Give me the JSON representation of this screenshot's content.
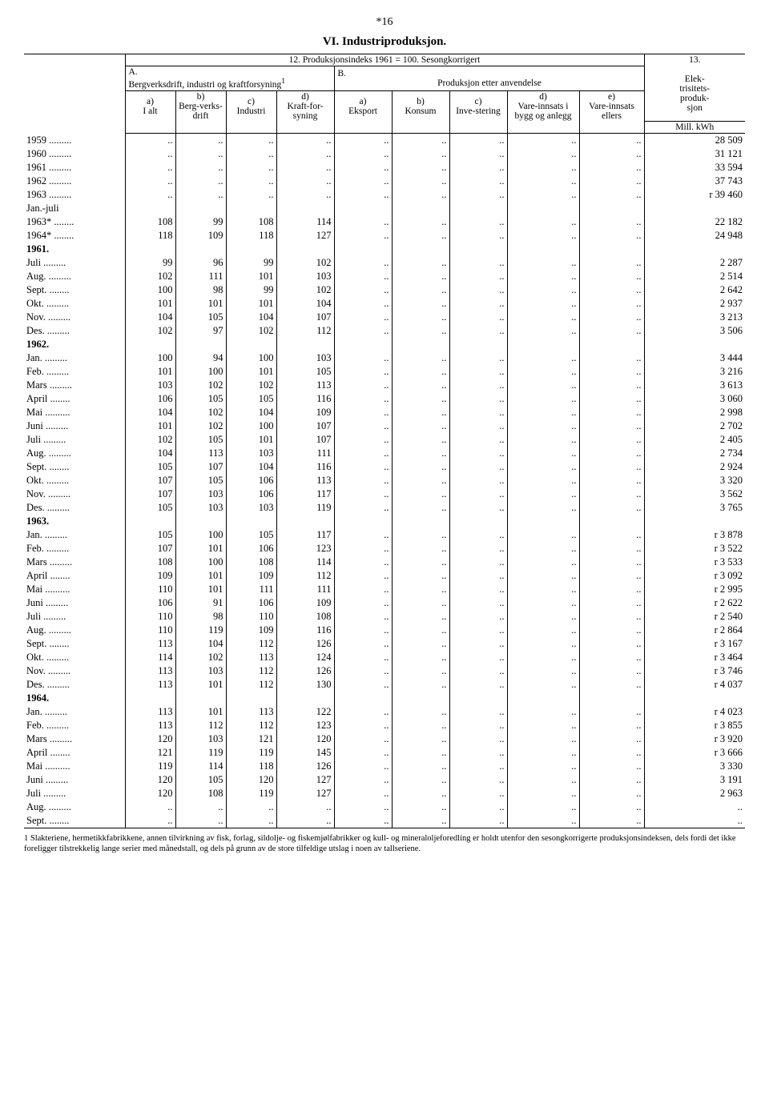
{
  "page_marker": "*16",
  "title": "VI. Industriproduksjon.",
  "header": {
    "span12": "12. Produksjonsindeks 1961 = 100. Sesongkorrigert",
    "col13_top": "13.",
    "A": "A.",
    "A_sub": "Bergverksdrift, industri og kraftforsyning",
    "A_footmark": "1",
    "B": "B.",
    "B_sub": "Produksjon etter anvendelse",
    "col13_line1": "Elek-",
    "col13_line2": "trisitets-",
    "col13_line3": "produk-",
    "col13_line4": "sjon",
    "col13_unit": "Mill. kWh",
    "a": "a)",
    "b": "b)",
    "c": "c)",
    "d": "d)",
    "e": "e)",
    "Ialt": "I alt",
    "Berg": "Berg-verks-drift",
    "Industri": "Industri",
    "Kraft": "Kraft-for-syning",
    "Eksport": "Eksport",
    "Konsum": "Konsum",
    "Inve": "Inve-stering",
    "Vare1": "Vare-innsats i bygg og anlegg",
    "Vare2": "Vare-innsats ellers"
  },
  "rows": [
    {
      "label": "1959 .........",
      "v": [
        "..",
        "..",
        "..",
        "..",
        "..",
        "..",
        "..",
        "..",
        "..",
        "28 509"
      ]
    },
    {
      "label": "1960 .........",
      "v": [
        "..",
        "..",
        "..",
        "..",
        "..",
        "..",
        "..",
        "..",
        "..",
        "31 121"
      ]
    },
    {
      "label": "1961 .........",
      "v": [
        "..",
        "..",
        "..",
        "..",
        "..",
        "..",
        "..",
        "..",
        "..",
        "33 594"
      ]
    },
    {
      "label": "1962 .........",
      "v": [
        "..",
        "..",
        "..",
        "..",
        "..",
        "..",
        "..",
        ".. ",
        "..",
        "37 743"
      ]
    },
    {
      "label": "1963 .........",
      "v": [
        "..",
        "..",
        "..",
        "..",
        "..",
        "..",
        "..",
        "..",
        "..",
        "r  39 460"
      ]
    },
    {
      "label": "Jan.-juli",
      "v": [
        "",
        "",
        "",
        "",
        "",
        "",
        "",
        "",
        "",
        ""
      ]
    },
    {
      "label": "1963* ........",
      "v": [
        "108",
        "99",
        "108",
        "114",
        "..",
        "..",
        "..",
        "..",
        "..",
        "22 182"
      ]
    },
    {
      "label": "1964* ........",
      "v": [
        "118",
        "109",
        "118",
        "127",
        "..",
        "..",
        "..",
        "..",
        "..",
        "24 948"
      ]
    },
    {
      "label": "1961.",
      "year": true,
      "v": [
        "",
        "",
        "",
        "",
        "",
        "",
        "",
        "",
        "",
        ""
      ]
    },
    {
      "label": "Juli .........",
      "v": [
        "99",
        "96",
        "99",
        "102",
        "..",
        "..",
        "..",
        "..",
        "..",
        "2 287"
      ]
    },
    {
      "label": "Aug. .........",
      "v": [
        "102",
        "111",
        "101",
        "103",
        "..",
        "..",
        "..",
        "..",
        "..",
        "2 514"
      ]
    },
    {
      "label": "Sept. ........",
      "v": [
        "100",
        "98",
        "99",
        "102",
        "..",
        "..",
        "..",
        "..",
        "..",
        "2 642"
      ]
    },
    {
      "label": "Okt. .........",
      "v": [
        "101",
        "101",
        "101",
        "104",
        "..",
        "..",
        "..",
        "..",
        "..",
        "2 937"
      ]
    },
    {
      "label": "Nov. .........",
      "v": [
        "104",
        "105",
        "104",
        "107",
        "..",
        "..",
        "..",
        "..",
        "..",
        "3 213"
      ]
    },
    {
      "label": "Des. .........",
      "v": [
        "102",
        "97",
        "102",
        "112",
        "..",
        "..",
        "..",
        "..",
        "..",
        "3 506"
      ]
    },
    {
      "label": "1962.",
      "year": true,
      "v": [
        "",
        "",
        "",
        "",
        "",
        "",
        "",
        "",
        "",
        ""
      ]
    },
    {
      "label": "Jan. .........",
      "v": [
        "100",
        "94",
        "100",
        "103",
        "..",
        "..",
        "..",
        "..",
        "..",
        "3 444"
      ]
    },
    {
      "label": "Feb. .........",
      "v": [
        "101",
        "100",
        "101",
        "105",
        "..",
        "..",
        "..",
        "..",
        "..",
        "3 216"
      ]
    },
    {
      "label": "Mars .........",
      "v": [
        "103",
        "102",
        "102",
        "113",
        "..",
        "..",
        "..",
        "..",
        "..",
        "3 613"
      ]
    },
    {
      "label": "April ........",
      "v": [
        "106",
        "105",
        "105",
        "116",
        "..",
        "..",
        "..",
        "..",
        "..",
        "3 060"
      ]
    },
    {
      "label": "Mai ..........",
      "v": [
        "104",
        "102",
        "104",
        "109",
        "..",
        "..",
        "..",
        "..",
        "..",
        "2 998"
      ]
    },
    {
      "label": "Juni .........",
      "v": [
        "101",
        "102",
        "100",
        "107",
        "..",
        "..",
        "..",
        "..",
        "..",
        "2 702"
      ]
    },
    {
      "label": "Juli .........",
      "v": [
        "102",
        "105",
        "101",
        "107",
        "..",
        "..",
        "..",
        "..",
        "..",
        "2 405"
      ]
    },
    {
      "label": "Aug. .........",
      "v": [
        "104",
        "113",
        "103",
        "111",
        "..",
        "..",
        "..",
        "..",
        "..",
        "2 734"
      ]
    },
    {
      "label": "Sept. ........",
      "v": [
        "105",
        "107",
        "104",
        "116",
        "..",
        "..",
        "..",
        "..",
        "..",
        "2 924"
      ]
    },
    {
      "label": "Okt. .........",
      "v": [
        "107",
        "105",
        "106",
        "113",
        "..",
        "..",
        "..",
        "..",
        "..",
        "3 320"
      ]
    },
    {
      "label": "Nov. .........",
      "v": [
        "107",
        "103",
        "106",
        "117",
        "..",
        "..",
        "..",
        "..",
        "..",
        "3 562"
      ]
    },
    {
      "label": "Des. .........",
      "v": [
        "105",
        "103",
        "103",
        "119",
        "..",
        "..",
        "..",
        "..",
        "..",
        "3 765"
      ]
    },
    {
      "label": "1963.",
      "year": true,
      "v": [
        "",
        "",
        "",
        "",
        "",
        "",
        "",
        "",
        "",
        ""
      ]
    },
    {
      "label": "Jan. .........",
      "v": [
        "105",
        "100",
        "105",
        "117",
        "..",
        "..",
        "..",
        "..",
        "..",
        "r  3 878"
      ]
    },
    {
      "label": "Feb. .........",
      "v": [
        "107",
        "101",
        "106",
        "123",
        "..",
        "..",
        "..",
        "..",
        "..",
        "r  3 522"
      ]
    },
    {
      "label": "Mars .........",
      "v": [
        "108",
        "100",
        "108",
        "114",
        "..",
        "..",
        "..",
        "..",
        "..",
        "r  3 533"
      ]
    },
    {
      "label": "April ........",
      "v": [
        "109",
        "101",
        "109",
        "112",
        "..",
        "..",
        "..",
        "..",
        "..",
        "r  3 092"
      ]
    },
    {
      "label": "Mai ..........",
      "v": [
        "110",
        "101",
        "111",
        "111",
        "..",
        "..",
        "..",
        "..",
        "..",
        "r  2 995"
      ]
    },
    {
      "label": "Juni .........",
      "v": [
        "106",
        "91",
        "106",
        "109",
        "..",
        "..",
        "..",
        "..",
        "..",
        "r  2 622"
      ]
    },
    {
      "label": "Juli .........",
      "v": [
        "110",
        "98",
        "110",
        "108",
        "..",
        "..",
        "..",
        "..",
        "..",
        "r  2 540"
      ]
    },
    {
      "label": "Aug. .........",
      "v": [
        "110",
        "119",
        "109",
        "116",
        "..",
        "..",
        "..",
        "..",
        "..",
        "r  2 864"
      ]
    },
    {
      "label": "Sept. ........",
      "v": [
        "113",
        "104",
        "112",
        "126",
        "..",
        "..",
        "..",
        "..",
        "..",
        "r  3 167"
      ]
    },
    {
      "label": "Okt. .........",
      "v": [
        "114",
        "102",
        "113",
        "124",
        "..",
        "..",
        "..",
        "..",
        "..",
        "r  3 464"
      ]
    },
    {
      "label": "Nov. .........",
      "v": [
        "113",
        "103",
        "112",
        "126",
        "..",
        "..",
        "..",
        "..",
        "..",
        "r  3 746"
      ]
    },
    {
      "label": "Des. .........",
      "v": [
        "113",
        "101",
        "112",
        "130",
        "..",
        "..",
        "..",
        "..",
        "..",
        "r  4 037"
      ]
    },
    {
      "label": "1964.",
      "year": true,
      "v": [
        "",
        "",
        "",
        "",
        "",
        "",
        "",
        "",
        "",
        ""
      ]
    },
    {
      "label": "Jan. .........",
      "v": [
        "113",
        "101",
        "113",
        "122",
        "..",
        "..",
        "..",
        "..",
        "..",
        "r  4 023"
      ]
    },
    {
      "label": "Feb. .........",
      "v": [
        "113",
        "112",
        "112",
        "123",
        "..",
        "..",
        "..",
        "..",
        "..",
        "r  3 855"
      ]
    },
    {
      "label": "Mars .........",
      "v": [
        "120",
        "103",
        "121",
        "120",
        "..",
        "..",
        "..",
        "..",
        "..",
        "r  3 920"
      ]
    },
    {
      "label": "April ........",
      "v": [
        "121",
        "119",
        "119",
        "145",
        "..",
        "..",
        "..",
        "..",
        "..",
        "r  3 666"
      ]
    },
    {
      "label": "Mai ..........",
      "v": [
        "119",
        "114",
        "118",
        "126",
        "..",
        "..",
        "..",
        "..",
        "..",
        "3 330"
      ]
    },
    {
      "label": "Juni .........",
      "v": [
        "120",
        "105",
        "120",
        "127",
        "..",
        "..",
        "..",
        "..",
        "..",
        "3 191"
      ]
    },
    {
      "label": "Juli .........",
      "v": [
        "120",
        "108",
        "119",
        "127",
        "..",
        "..",
        "..",
        "..",
        "..",
        "2 963"
      ]
    },
    {
      "label": "Aug. .........",
      "v": [
        "..",
        "..",
        "..",
        "..",
        "..",
        "..",
        "..",
        "..",
        "..",
        ".."
      ]
    },
    {
      "label": "Sept. ........",
      "v": [
        "..",
        "..",
        "..",
        "..",
        "..",
        "..",
        "..",
        "..",
        "..",
        ".."
      ]
    }
  ],
  "footnote": "1  Slakteriene, hermetikkfabrikkene, annen tilvirkning av fisk, forlag, sildolje- og fiskemjølfabrikker og kull- og mineraloljeforedling er holdt utenfor den sesongkorrigerte produksjonsindeksen, dels fordi det ikke foreligger tilstrekkelig lange serier med månedstall, og dels på grunn av de store tilfeldige utslag i noen av tallseriene.",
  "layout": {
    "col_widths_pct": [
      14,
      7,
      7,
      7,
      8,
      8,
      8,
      8,
      10,
      9,
      14
    ],
    "colors": {
      "text": "#000000",
      "bg": "#ffffff"
    }
  }
}
